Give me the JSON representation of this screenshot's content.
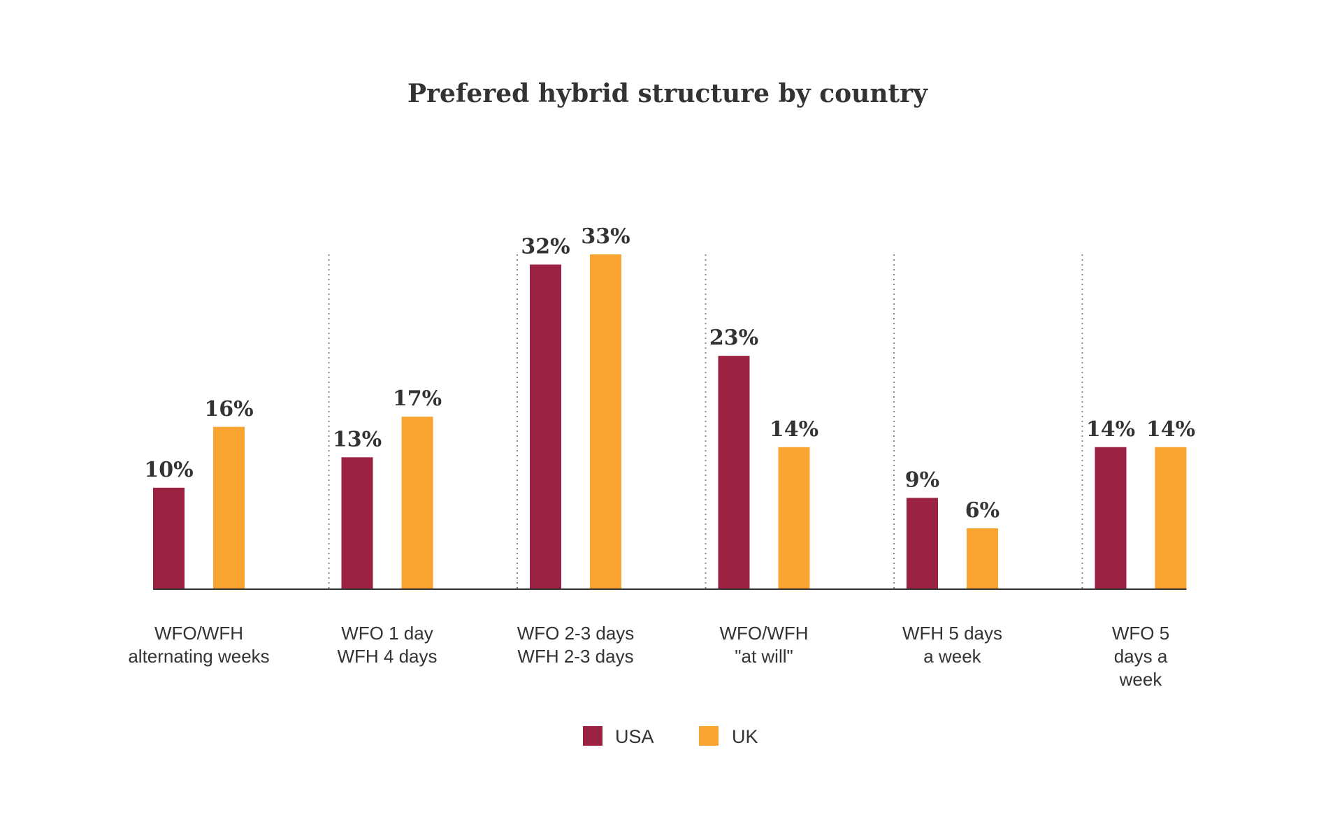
{
  "chart_data": {
    "type": "bar",
    "title": "Prefered hybrid structure by country",
    "xlabel": "",
    "ylabel": "",
    "ylim": [
      0,
      33
    ],
    "grid": false,
    "legend_position": "bottom-center",
    "categories": [
      [
        "WFO/WFH",
        "alternating weeks"
      ],
      [
        "WFO 1 day",
        "WFH 4 days"
      ],
      [
        "WFO 2-3 days",
        "WFH 2-3 days"
      ],
      [
        "WFO/WFH",
        "\"at will\""
      ],
      [
        "WFH 5 days",
        "a week"
      ],
      [
        "WFO 5",
        "days a",
        "week"
      ]
    ],
    "series": [
      {
        "name": "USA",
        "color": "#9b2242",
        "values": [
          10,
          13,
          32,
          23,
          9,
          14
        ],
        "labels": [
          "10%",
          "13%",
          "32%",
          "23%",
          "9%",
          "14%"
        ]
      },
      {
        "name": "UK",
        "color": "#f9a430",
        "values": [
          16,
          17,
          33,
          14,
          6,
          14
        ],
        "labels": [
          "16%",
          "17%",
          "33%",
          "14%",
          "6%",
          "14%"
        ]
      }
    ],
    "colors": {
      "axis": "#333333",
      "divider": "#888888",
      "text": "#333333"
    }
  }
}
